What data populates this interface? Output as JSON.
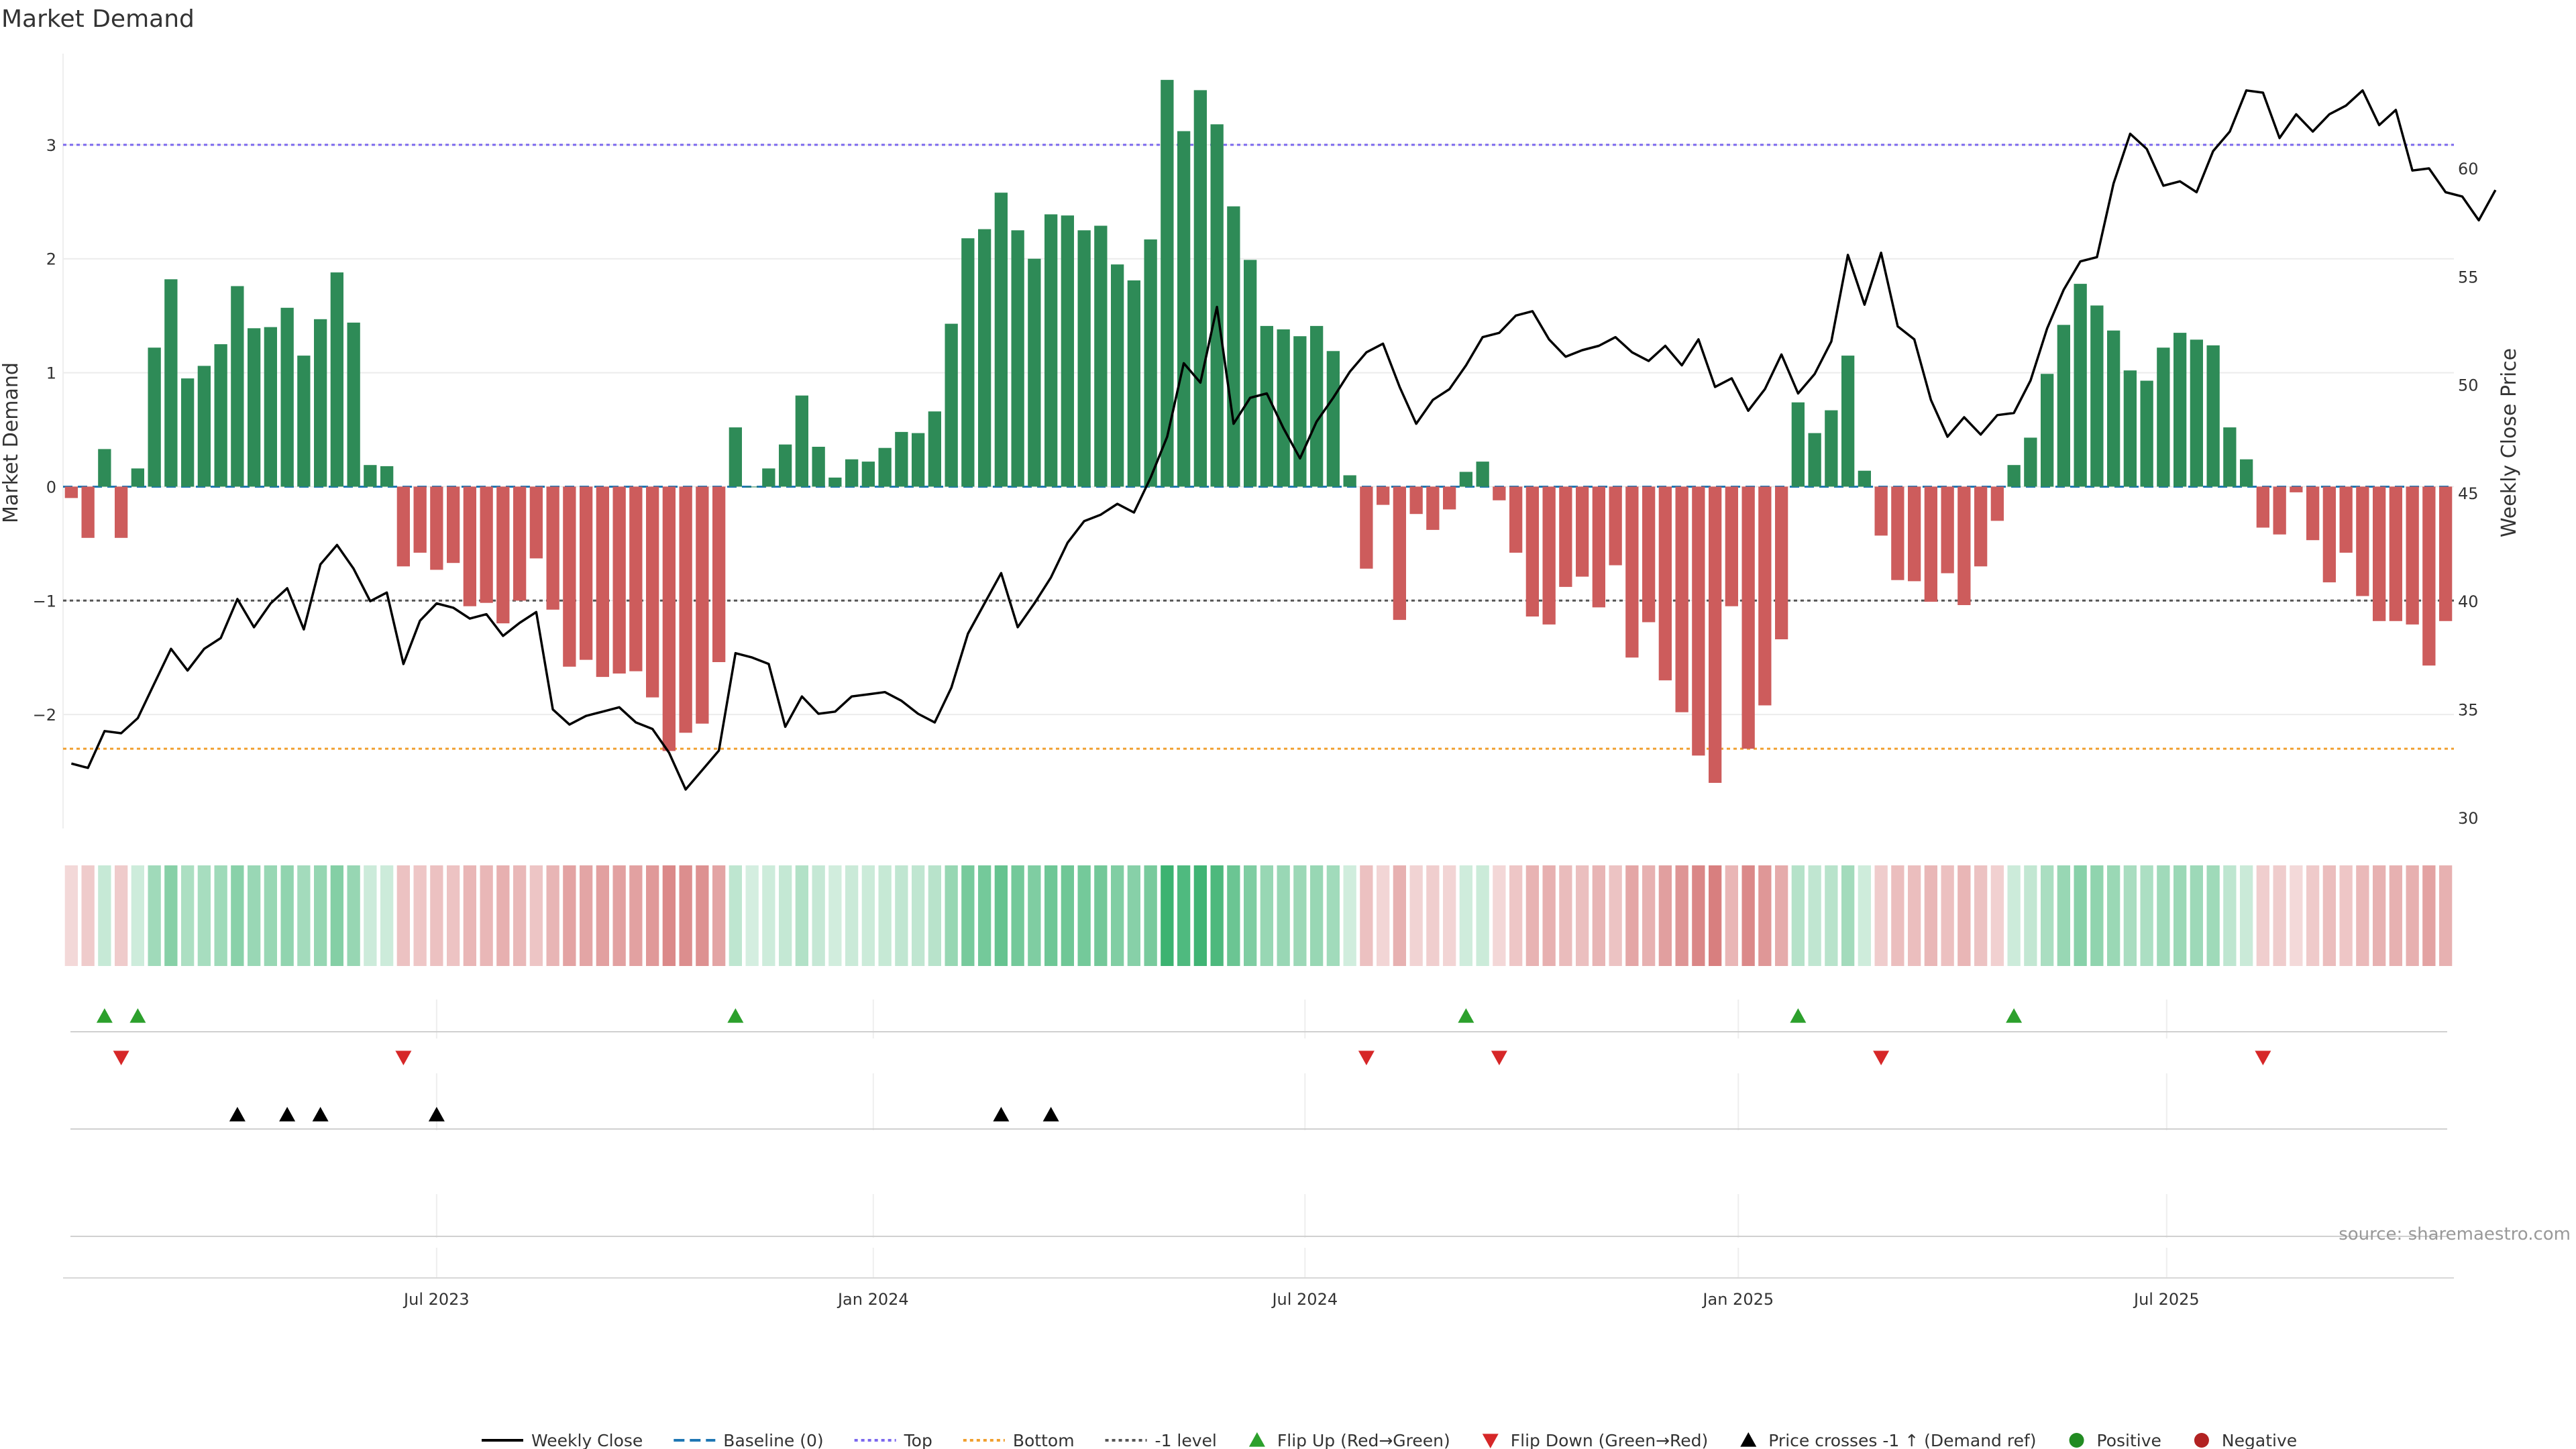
{
  "chart_data": {
    "type": "bar",
    "title": "Market Demand",
    "ylabel_left": "Market Demand",
    "ylabel_right": "Weekly Close Price",
    "ylim_left": [
      -3.0,
      3.8
    ],
    "ylim_right": [
      29.5,
      65.3
    ],
    "yticks_left": [
      {
        "value": 3,
        "label": "3"
      },
      {
        "value": 2,
        "label": "2"
      },
      {
        "value": 1,
        "label": "1"
      },
      {
        "value": 0,
        "label": "0"
      },
      {
        "value": -1,
        "label": "−1"
      },
      {
        "value": -2,
        "label": "−2"
      }
    ],
    "yticks_right": [
      {
        "value": 60,
        "label": "60"
      },
      {
        "value": 55,
        "label": "55"
      },
      {
        "value": 50,
        "label": "50"
      },
      {
        "value": 45,
        "label": "45"
      },
      {
        "value": 40,
        "label": "40"
      },
      {
        "value": 35,
        "label": "35"
      },
      {
        "value": 30,
        "label": "30"
      }
    ],
    "reference_lines": {
      "baseline": 0,
      "top": 3.0,
      "bottom": -2.3,
      "minus_one": -1
    },
    "xticks": [
      {
        "index": 22,
        "label": "Jul 2023"
      },
      {
        "index": 48.3,
        "label": "Jan 2024"
      },
      {
        "index": 74.3,
        "label": "Jul 2024"
      },
      {
        "index": 100.4,
        "label": "Jan 2025"
      },
      {
        "index": 126.2,
        "label": "Jul 2025"
      }
    ],
    "demand": [
      -0.1,
      -0.45,
      0.33,
      -0.45,
      0.16,
      1.22,
      1.82,
      0.95,
      1.06,
      1.25,
      1.76,
      1.39,
      1.4,
      1.57,
      1.15,
      1.47,
      1.88,
      1.44,
      0.19,
      0.18,
      -0.7,
      -0.58,
      -0.73,
      -0.67,
      -1.05,
      -1.02,
      -1.2,
      -1.0,
      -0.63,
      -1.08,
      -1.58,
      -1.52,
      -1.67,
      -1.64,
      -1.62,
      -1.85,
      -2.32,
      -2.16,
      -2.08,
      -1.54,
      0.52,
      0.0,
      0.16,
      0.37,
      0.8,
      0.35,
      0.08,
      0.24,
      0.22,
      0.34,
      0.48,
      0.47,
      0.66,
      1.43,
      2.18,
      2.26,
      2.58,
      2.25,
      2.0,
      2.39,
      2.38,
      2.25,
      2.29,
      1.95,
      1.81,
      2.17,
      3.57,
      3.12,
      3.48,
      3.18,
      2.46,
      1.99,
      1.41,
      1.38,
      1.32,
      1.41,
      1.19,
      0.1,
      -0.72,
      -0.16,
      -1.17,
      -0.24,
      -0.38,
      -0.2,
      0.13,
      0.22,
      -0.12,
      -0.58,
      -1.14,
      -1.21,
      -0.88,
      -0.79,
      -1.06,
      -0.69,
      -1.5,
      -1.19,
      -1.7,
      -1.98,
      -2.36,
      -2.6,
      -1.05,
      -2.3,
      -1.92,
      -1.34,
      0.74,
      0.47,
      0.67,
      1.15,
      0.14,
      -0.43,
      -0.82,
      -0.83,
      -1.01,
      -0.76,
      -1.04,
      -0.7,
      -0.3,
      0.19,
      0.43,
      0.99,
      1.42,
      1.78,
      1.59,
      1.37,
      1.02,
      0.93,
      1.22,
      1.35,
      1.29,
      1.24,
      0.52,
      0.24,
      -0.36,
      -0.42,
      -0.05,
      -0.47,
      -0.84,
      -0.58,
      -0.96,
      -1.18,
      -1.18,
      -1.21,
      -1.57,
      -1.18
    ],
    "weekly_close": [
      32.5,
      32.3,
      34.0,
      33.9,
      34.6,
      36.2,
      37.8,
      36.8,
      37.8,
      38.3,
      40.1,
      38.8,
      39.9,
      40.6,
      38.7,
      41.7,
      42.6,
      41.5,
      40.0,
      40.4,
      37.1,
      39.1,
      39.9,
      39.7,
      39.2,
      39.4,
      38.4,
      39.0,
      39.5,
      35.0,
      34.3,
      34.7,
      34.9,
      35.1,
      34.4,
      34.1,
      33.0,
      31.3,
      32.2,
      33.1,
      37.6,
      37.4,
      37.1,
      34.2,
      35.6,
      34.8,
      34.9,
      35.6,
      35.7,
      35.8,
      35.4,
      34.8,
      34.4,
      36.0,
      38.5,
      39.9,
      41.3,
      38.8,
      39.9,
      41.1,
      42.7,
      43.7,
      44.0,
      44.5,
      44.1,
      45.7,
      47.6,
      51.0,
      50.1,
      53.6,
      48.2,
      49.4,
      49.6,
      48.0,
      46.6,
      48.3,
      49.4,
      50.6,
      51.5,
      51.9,
      49.9,
      48.2,
      49.3,
      49.8,
      50.9,
      52.2,
      52.4,
      53.2,
      53.4,
      52.1,
      51.3,
      51.6,
      51.8,
      52.2,
      51.5,
      51.1,
      51.8,
      50.9,
      52.1,
      49.9,
      50.3,
      48.8,
      49.8,
      51.4,
      49.6,
      50.5,
      52.0,
      56.0,
      53.7,
      56.1,
      52.7,
      52.1,
      49.3,
      47.6,
      48.5,
      47.7,
      48.6,
      48.7,
      50.2,
      52.6,
      54.4,
      55.7,
      55.9,
      59.3,
      61.6,
      60.9,
      59.2,
      59.4,
      58.9,
      60.8,
      61.7,
      63.6,
      63.5,
      61.4,
      62.5,
      61.7,
      62.5,
      62.9,
      63.6,
      62.0,
      62.7,
      59.9,
      60.0,
      58.9,
      58.7,
      57.6,
      59.0
    ],
    "flip_up_indices": [
      2,
      4,
      40,
      84,
      104,
      117
    ],
    "flip_down_indices": [
      3,
      20,
      78,
      86,
      109,
      132
    ],
    "price_cross_indices": [
      10,
      13,
      15,
      22,
      56,
      59
    ],
    "source": "source: sharemaestro.com",
    "legend": [
      {
        "label": "Weekly Close",
        "kind": "line-solid",
        "color": "#000000"
      },
      {
        "label": "Baseline (0)",
        "kind": "line-dash",
        "color": "#1f77b4"
      },
      {
        "label": "Top",
        "kind": "line-dot",
        "color": "#7b68ee"
      },
      {
        "label": "Bottom",
        "kind": "line-dot",
        "color": "#f0a030"
      },
      {
        "label": "-1 level",
        "kind": "line-dot",
        "color": "#555555"
      },
      {
        "label": "Flip Up (Red→Green)",
        "kind": "tri-up",
        "color": "#2ca02c"
      },
      {
        "label": "Flip Down (Green→Red)",
        "kind": "tri-down",
        "color": "#d62728"
      },
      {
        "label": "Price crosses -1 ↑ (Demand ref)",
        "kind": "tri-up",
        "color": "#000000"
      },
      {
        "label": "Positive",
        "kind": "dot",
        "color": "#228b22"
      },
      {
        "label": "Negative",
        "kind": "dot",
        "color": "#b22222"
      }
    ]
  },
  "colors": {
    "positive_bar": "#2e8b57",
    "negative_bar": "#cd5c5c",
    "flip_up": "#2ca02c",
    "flip_down": "#d62728",
    "price_cross": "#000000",
    "price_line": "#000000",
    "baseline": "#1f77b4",
    "top_line": "#7b68ee",
    "bottom_line": "#f0a030",
    "minus_one_line": "#555555"
  }
}
